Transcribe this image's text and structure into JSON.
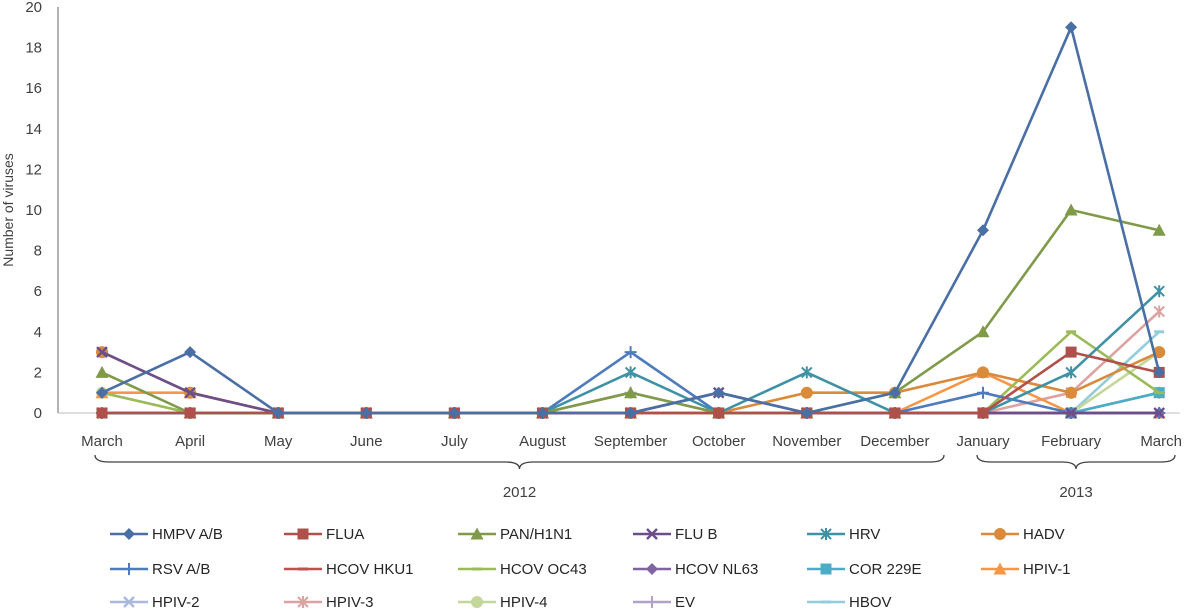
{
  "chart_data": {
    "type": "line",
    "ylabel": "Number of viruses",
    "ylim": [
      0,
      20
    ],
    "yticks": [
      0,
      2,
      4,
      6,
      8,
      10,
      12,
      14,
      16,
      18,
      20
    ],
    "categories": [
      "March",
      "April",
      "May",
      "June",
      "July",
      "August",
      "September",
      "October",
      "November",
      "December",
      "January",
      "February",
      "March"
    ],
    "year_groups": [
      {
        "label": "2012",
        "from": 0,
        "to": 9
      },
      {
        "label": "2013",
        "from": 10,
        "to": 12
      }
    ],
    "legend_position": "bottom",
    "series": [
      {
        "name": "HMPV A/B",
        "color": "#4a6fa5",
        "marker": "diamond",
        "values": [
          1,
          3,
          0,
          0,
          0,
          0,
          0,
          1,
          0,
          1,
          9,
          19,
          2
        ]
      },
      {
        "name": "FLUA",
        "color": "#b0504b",
        "marker": "square",
        "values": [
          0,
          0,
          0,
          0,
          0,
          0,
          0,
          0,
          0,
          0,
          0,
          3,
          2
        ]
      },
      {
        "name": "PAN/H1N1",
        "color": "#7f9a48",
        "marker": "triangle",
        "values": [
          2,
          0,
          0,
          0,
          0,
          0,
          1,
          0,
          0,
          1,
          4,
          10,
          9
        ]
      },
      {
        "name": "FLU B",
        "color": "#6b4e8a",
        "marker": "x",
        "values": [
          3,
          1,
          0,
          0,
          0,
          0,
          0,
          1,
          0,
          0,
          0,
          0,
          0
        ]
      },
      {
        "name": "HRV",
        "color": "#3f92a5",
        "marker": "star",
        "values": [
          0,
          0,
          0,
          0,
          0,
          0,
          2,
          0,
          2,
          0,
          0,
          2,
          6
        ]
      },
      {
        "name": "HADV",
        "color": "#d98a3a",
        "marker": "circle",
        "values": [
          3,
          1,
          0,
          0,
          0,
          0,
          0,
          0,
          1,
          1,
          2,
          1,
          3
        ]
      },
      {
        "name": "RSV A/B",
        "color": "#4d7bbd",
        "marker": "plus",
        "values": [
          0,
          0,
          0,
          0,
          0,
          0,
          3,
          0,
          0,
          0,
          1,
          0,
          0
        ]
      },
      {
        "name": "HCOV HKU1",
        "color": "#c0504d",
        "marker": "dash",
        "values": [
          0,
          0,
          0,
          0,
          0,
          0,
          0,
          0,
          0,
          0,
          0,
          0,
          0
        ]
      },
      {
        "name": "HCOV OC43",
        "color": "#9bbb59",
        "marker": "dash",
        "values": [
          1,
          0,
          0,
          0,
          0,
          0,
          0,
          0,
          0,
          0,
          0,
          4,
          1
        ]
      },
      {
        "name": "HCOV NL63",
        "color": "#8064a2",
        "marker": "diamond",
        "values": [
          0,
          0,
          0,
          0,
          0,
          0,
          0,
          0,
          0,
          0,
          0,
          0,
          0
        ]
      },
      {
        "name": "COR 229E",
        "color": "#4bacc6",
        "marker": "square",
        "values": [
          0,
          0,
          0,
          0,
          0,
          0,
          0,
          0,
          0,
          0,
          0,
          0,
          1
        ]
      },
      {
        "name": "HPIV-1",
        "color": "#f79646",
        "marker": "triangle",
        "values": [
          1,
          1,
          0,
          0,
          0,
          0,
          0,
          0,
          0,
          0,
          2,
          0,
          0
        ]
      },
      {
        "name": "HPIV-2",
        "color": "#a9b8dc",
        "marker": "x",
        "values": [
          0,
          0,
          0,
          0,
          0,
          0,
          0,
          0,
          0,
          0,
          0,
          0,
          1
        ]
      },
      {
        "name": "HPIV-3",
        "color": "#dba3a1",
        "marker": "star",
        "values": [
          0,
          0,
          0,
          0,
          0,
          0,
          0,
          0,
          0,
          0,
          0,
          1,
          5
        ]
      },
      {
        "name": "HPIV-4",
        "color": "#c3d69b",
        "marker": "circle",
        "values": [
          1,
          0,
          0,
          0,
          0,
          0,
          0,
          0,
          0,
          0,
          0,
          0,
          3
        ]
      },
      {
        "name": "EV",
        "color": "#b3a2c7",
        "marker": "plus",
        "values": [
          0,
          0,
          0,
          0,
          0,
          0,
          1,
          0,
          0,
          0,
          0,
          0,
          1
        ]
      },
      {
        "name": "HBOV",
        "color": "#93cddd",
        "marker": "dash",
        "values": [
          0,
          0,
          0,
          0,
          0,
          0,
          0,
          0,
          0,
          0,
          0,
          0,
          4
        ]
      }
    ]
  }
}
